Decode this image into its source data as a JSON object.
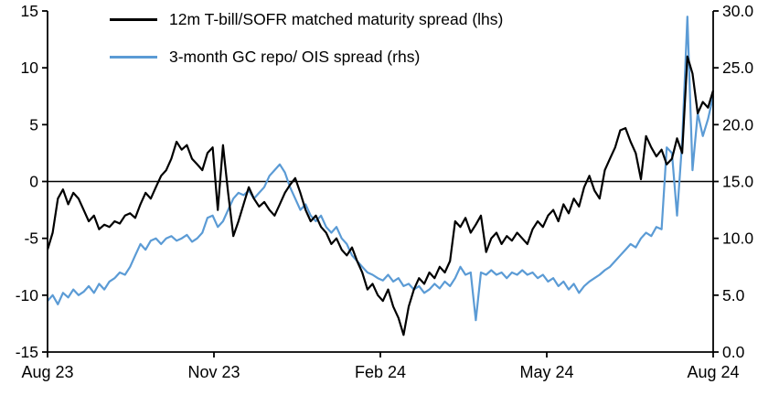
{
  "chart_data": {
    "type": "line",
    "title": "",
    "legend_position": "top-left-inside",
    "x_axis": {
      "tick_labels": [
        "Aug 23",
        "Nov 23",
        "Feb 24",
        "May 24",
        "Aug 24"
      ],
      "tick_positions": [
        0,
        0.25,
        0.5,
        0.75,
        1
      ]
    },
    "left_axis": {
      "ylim": [
        -15,
        15
      ],
      "ticks": [
        15,
        10,
        5,
        0,
        -5,
        -10,
        -15
      ],
      "zero_line": 0
    },
    "right_axis": {
      "ylim": [
        0,
        30
      ],
      "ticks": [
        "30.0",
        "25.0",
        "20.0",
        "15.0",
        "10.0",
        "5.0",
        "0.0"
      ],
      "tick_values": [
        30,
        25,
        20,
        15,
        10,
        5,
        0
      ]
    },
    "series": [
      {
        "name": "12m T-bill/SOFR matched maturity spread (lhs)",
        "axis": "left",
        "color": "#000000",
        "values": [
          -6,
          -4.5,
          -1.5,
          -0.7,
          -2,
          -1,
          -1.5,
          -2.5,
          -3.5,
          -3,
          -4.2,
          -3.8,
          -4,
          -3.5,
          -3.7,
          -3,
          -2.8,
          -3.2,
          -2,
          -1,
          -1.5,
          -0.5,
          0.5,
          1,
          2,
          3.5,
          2.8,
          3.2,
          2,
          1.5,
          1,
          2.5,
          3,
          -2.5,
          3.2,
          -1,
          -4.8,
          -3.5,
          -2,
          -0.5,
          -1.5,
          -2.2,
          -1.8,
          -2.5,
          -3,
          -2,
          -1,
          -0.3,
          0.3,
          -1,
          -2.5,
          -3.5,
          -3,
          -4,
          -4.5,
          -5.5,
          -5,
          -6,
          -6.5,
          -5.8,
          -7,
          -8,
          -9.5,
          -9,
          -10,
          -10.5,
          -9.5,
          -11,
          -12,
          -13.5,
          -11,
          -9.5,
          -8.5,
          -9,
          -8,
          -8.5,
          -7.5,
          -8,
          -7,
          -3.5,
          -4,
          -3.2,
          -4.5,
          -3.8,
          -3,
          -6.2,
          -5,
          -4.5,
          -5.5,
          -4.8,
          -5.2,
          -4.5,
          -5,
          -5.5,
          -4.2,
          -3.5,
          -4,
          -3,
          -2.5,
          -3.5,
          -2,
          -2.8,
          -1.5,
          -2.2,
          -0.5,
          0.5,
          -0.8,
          -1.5,
          1,
          2,
          3,
          4.5,
          4.7,
          3.5,
          2.5,
          0.2,
          4,
          3,
          2.2,
          2.8,
          1.5,
          2,
          3.8,
          2.5,
          11,
          9.5,
          6,
          7,
          6.5,
          8
        ]
      },
      {
        "name": "3-month GC repo/ OIS spread (rhs)",
        "axis": "right",
        "color": "#5b9bd5",
        "values": [
          4.5,
          5,
          4.2,
          5.2,
          4.8,
          5.5,
          5,
          5.3,
          5.8,
          5.2,
          6,
          5.5,
          6.2,
          6.5,
          7,
          6.8,
          7.5,
          8.5,
          9.5,
          9,
          9.8,
          10,
          9.5,
          10,
          10.2,
          9.8,
          10,
          10.3,
          9.7,
          10,
          10.5,
          11.8,
          12,
          11,
          11.5,
          12.5,
          13.5,
          14,
          13.8,
          14.2,
          13.5,
          14,
          14.5,
          15.5,
          16,
          16.5,
          15.8,
          14.5,
          13.5,
          12.5,
          13,
          12,
          11.5,
          12,
          11,
          10.5,
          11,
          10,
          9.5,
          8.5,
          8,
          7.5,
          7,
          6.8,
          6.5,
          6.3,
          6.8,
          6.2,
          6.5,
          5.8,
          6,
          5.5,
          5.8,
          5.2,
          5.5,
          6,
          5.6,
          6.2,
          5.8,
          6.5,
          7.5,
          6.8,
          7,
          2.8,
          7,
          6.8,
          7.2,
          6.8,
          7,
          6.5,
          7,
          6.8,
          7.2,
          6.8,
          7,
          6.5,
          6.8,
          6.2,
          6.5,
          5.8,
          6.2,
          5.5,
          6,
          5.2,
          5.8,
          6.2,
          6.5,
          6.8,
          7.2,
          7.5,
          8,
          8.5,
          9,
          9.5,
          9.2,
          10,
          10.5,
          10.2,
          11,
          10.8,
          18,
          17.5,
          12,
          18.5,
          29.5,
          16,
          21,
          19,
          20.5,
          22.5
        ]
      }
    ]
  }
}
